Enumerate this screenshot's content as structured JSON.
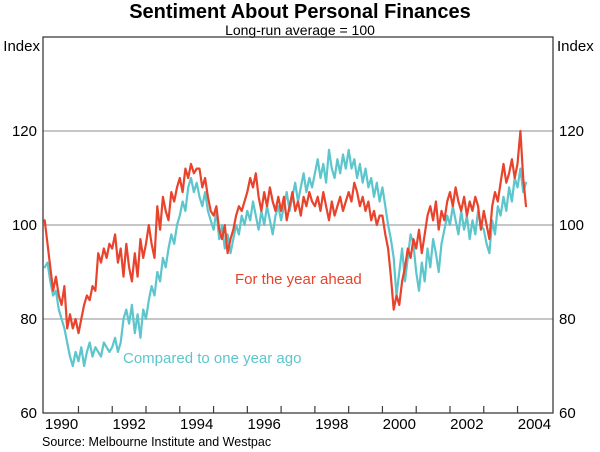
{
  "header": {
    "title": "Sentiment About Personal Finances",
    "subtitle": "Long-run average = 100"
  },
  "footer": {
    "source": "Source: Melbourne Institute and Westpac"
  },
  "axis": {
    "index_label": "Index"
  },
  "colors": {
    "series_year_ahead": "#E8432C",
    "series_one_year_ago": "#5CC6CC",
    "gridline": "#8c8c8c",
    "frame": "#3c3c3c",
    "text": "#000000"
  },
  "chart_data": {
    "type": "line",
    "title": "Sentiment About Personal Finances",
    "subtitle": "Long-run average = 100",
    "ylabel": "Index",
    "ylim": [
      60,
      140
    ],
    "yticks_labeled": [
      60,
      80,
      100,
      120
    ],
    "gridlines": [
      80,
      100,
      120
    ],
    "x_axis_range": [
      1989.95,
      2005.05
    ],
    "x_tick_years": [
      1991,
      1992,
      1993,
      1994,
      1995,
      1996,
      1997,
      1998,
      1999,
      2000,
      2001,
      2002,
      2003,
      2004
    ],
    "x_label_years": [
      "1990",
      "1992",
      "1994",
      "1996",
      "1998",
      "2000",
      "2002",
      "2004"
    ],
    "x_start": 1990.0,
    "x_step_months": 1,
    "legend_position": "in-plot annotations",
    "grid": "horizontal only",
    "series": [
      {
        "name": "For the year ahead",
        "color": "#E8432C",
        "values": [
          101,
          96,
          91,
          86,
          89,
          85,
          83,
          87,
          78,
          81,
          78,
          80,
          77,
          80,
          83,
          85,
          84,
          87,
          86,
          94,
          92,
          95,
          93,
          96,
          95,
          98,
          92,
          95,
          89,
          96,
          91,
          88,
          94,
          89,
          97,
          93,
          96,
          100,
          96,
          93,
          104,
          99,
          106,
          103,
          101,
          107,
          105,
          108,
          110,
          107,
          112,
          110,
          113,
          111,
          112,
          112,
          108,
          110,
          106,
          103,
          102,
          104,
          99,
          97,
          100,
          94,
          97,
          99,
          102,
          104,
          103,
          105,
          107,
          110,
          108,
          111,
          106,
          103,
          107,
          104,
          108,
          105,
          103,
          106,
          103,
          106,
          101,
          104,
          107,
          103,
          105,
          102,
          106,
          104,
          107,
          105,
          104,
          106,
          103,
          107,
          104,
          101,
          105,
          102,
          104,
          106,
          103,
          105,
          107,
          105,
          109,
          107,
          104,
          106,
          103,
          105,
          101,
          103,
          100,
          102,
          102,
          98,
          95,
          89,
          82,
          85,
          83,
          88,
          91,
          95,
          93,
          97,
          95,
          99,
          94,
          98,
          102,
          104,
          101,
          105,
          99,
          103,
          101,
          105,
          107,
          104,
          108,
          105,
          103,
          106,
          102,
          105,
          103,
          106,
          104,
          99,
          103,
          100,
          97,
          104,
          107,
          105,
          109,
          113,
          109,
          111,
          114,
          110,
          113,
          120,
          110,
          104
        ]
      },
      {
        "name": "Compared to one year ago",
        "color": "#5CC6CC",
        "values": [
          91,
          92,
          88,
          85,
          86,
          82,
          80,
          78,
          75,
          72,
          70,
          73,
          71,
          74,
          70,
          73,
          75,
          72,
          74,
          73,
          72,
          75,
          74,
          73,
          74,
          76,
          73,
          75,
          80,
          82,
          79,
          83,
          77,
          81,
          76,
          82,
          80,
          84,
          87,
          85,
          90,
          88,
          93,
          91,
          95,
          98,
          96,
          100,
          102,
          105,
          103,
          108,
          110,
          107,
          109,
          106,
          104,
          107,
          103,
          101,
          99,
          103,
          97,
          100,
          95,
          98,
          94,
          97,
          100,
          98,
          102,
          100,
          103,
          101,
          105,
          102,
          99,
          103,
          100,
          104,
          101,
          98,
          102,
          104,
          101,
          104,
          107,
          103,
          106,
          109,
          105,
          108,
          111,
          107,
          110,
          108,
          111,
          114,
          110,
          113,
          109,
          116,
          112,
          110,
          114,
          111,
          115,
          112,
          116,
          112,
          114,
          110,
          113,
          109,
          112,
          108,
          110,
          106,
          109,
          105,
          108,
          104,
          100,
          97,
          93,
          85,
          90,
          95,
          88,
          93,
          98,
          96,
          90,
          86,
          92,
          88,
          95,
          91,
          97,
          94,
          90,
          96,
          99,
          102,
          100,
          104,
          101,
          98,
          103,
          99,
          102,
          97,
          101,
          98,
          103,
          100,
          99,
          96,
          94,
          101,
          98,
          104,
          102,
          106,
          103,
          108,
          105,
          110,
          108,
          112,
          107,
          109
        ]
      }
    ],
    "annotations": [
      {
        "text": "For the year ahead",
        "color": "#E8432C"
      },
      {
        "text": "Compared to one year ago",
        "color": "#5CC6CC"
      }
    ]
  }
}
